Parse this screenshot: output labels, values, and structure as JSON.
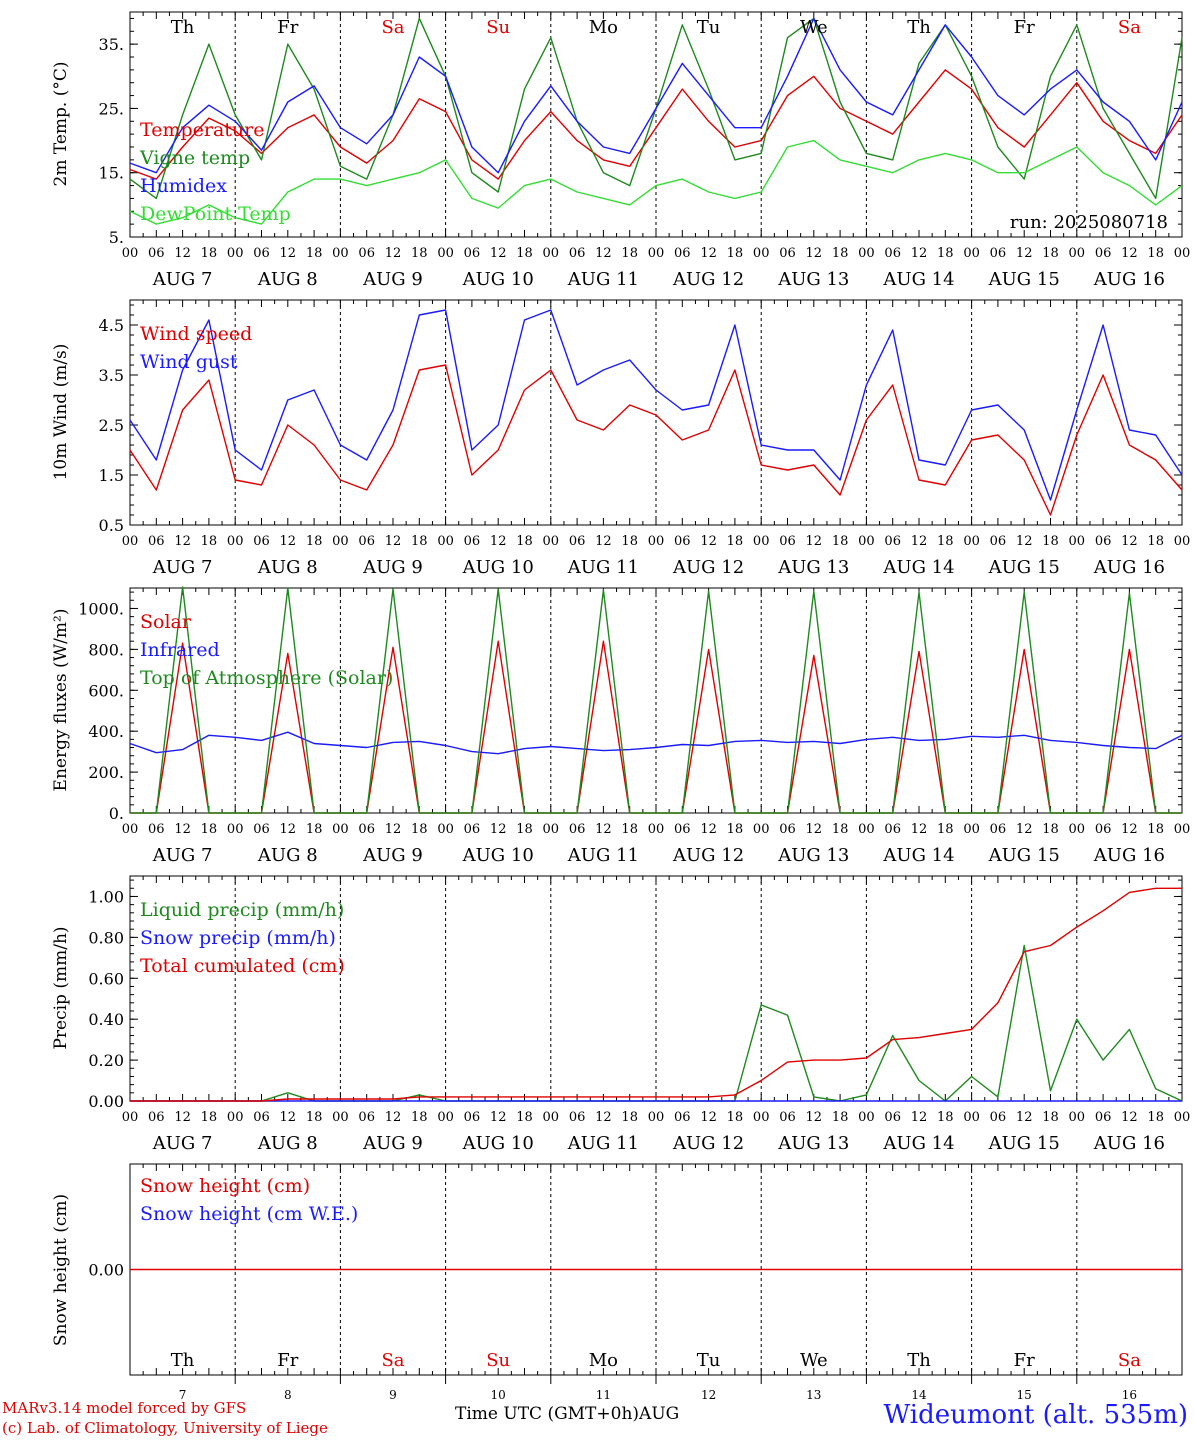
{
  "run_label": "run: 2025080718",
  "day_names": [
    "Th",
    "Fr",
    "Sa",
    "Su",
    "Mo",
    "Tu",
    "We",
    "Th",
    "Fr",
    "Sa"
  ],
  "weekend_flags": [
    false,
    false,
    true,
    true,
    false,
    false,
    false,
    false,
    false,
    true
  ],
  "date_labels": [
    "AUG  7",
    "AUG  8",
    "AUG  9",
    "AUG 10",
    "AUG 11",
    "AUG 12",
    "AUG 13",
    "AUG 14",
    "AUG 15",
    "AUG 16"
  ],
  "day_numbers": [
    "7",
    "8",
    "9",
    "10",
    "11",
    "12",
    "13",
    "14",
    "15",
    "16"
  ],
  "hour_labels": [
    "00",
    "06",
    "12",
    "18"
  ],
  "last_hour_label": "00",
  "colors": {
    "red": "#e00000",
    "green": "#1e8a1e",
    "blue": "#1a1aff",
    "lightgreen": "#33dd33"
  },
  "footer": {
    "model": "MARv3.14 model forced by GFS",
    "lab": "(c) Lab. of Climatology, University of Liege",
    "axis_title": "Time UTC (GMT+0h)AUG",
    "station": "Wideumont (alt. 535m)"
  },
  "chart_data": [
    {
      "type": "line",
      "ylabel": "2m Temp. (°C)",
      "ylim": [
        5,
        40
      ],
      "yticks": [
        "5.",
        "15.",
        "25.",
        "35."
      ],
      "ytick_values": [
        5,
        15,
        25,
        35
      ],
      "legend": [
        "Temperature",
        "Vigne temp",
        "Humidex",
        "DewPoint Temp"
      ],
      "x_hours": [
        0,
        6,
        12,
        18,
        24,
        30,
        36,
        42,
        48,
        54,
        60,
        66,
        72,
        78,
        84,
        90,
        96,
        102,
        108,
        114,
        120,
        126,
        132,
        138,
        144,
        150,
        156,
        162,
        168,
        174,
        180,
        186,
        192,
        198,
        204,
        210,
        216,
        222,
        228,
        234,
        240
      ],
      "series": [
        {
          "name": "Temperature",
          "color": "red",
          "values": [
            15.5,
            14,
            19,
            23.5,
            21.5,
            18,
            22,
            24,
            19,
            16.5,
            20,
            26.5,
            24.5,
            17,
            14,
            20,
            24.5,
            20,
            17,
            16,
            22,
            28,
            23,
            19,
            20,
            27,
            30,
            25,
            23,
            21,
            26,
            31,
            28,
            22,
            19,
            24,
            29,
            23,
            20,
            18,
            24
          ]
        },
        {
          "name": "Vigne temp",
          "color": "green",
          "values": [
            14,
            11,
            24,
            35,
            24,
            17,
            35,
            28,
            16,
            14,
            24,
            39,
            30,
            15,
            12,
            28,
            36,
            23,
            15,
            13,
            25,
            38,
            28,
            17,
            18,
            36,
            39,
            26,
            18,
            17,
            32,
            38,
            30,
            19,
            14,
            30,
            38,
            25,
            18,
            11,
            36
          ]
        },
        {
          "name": "Humidex",
          "color": "blue",
          "values": [
            16.5,
            15,
            22,
            25.5,
            23,
            18.5,
            26,
            28.5,
            22,
            19.5,
            24,
            33,
            30,
            19,
            15,
            23,
            28.5,
            23,
            19,
            18,
            25,
            32,
            27,
            22,
            22,
            30,
            39,
            31,
            26,
            24,
            31,
            38,
            33,
            27,
            24,
            28,
            31,
            26,
            23,
            17,
            26
          ]
        },
        {
          "name": "DewPoint Temp",
          "color": "lightgreen",
          "values": [
            9,
            7,
            8,
            10,
            8,
            7,
            12,
            14,
            14,
            13,
            14,
            15,
            17,
            11,
            9.5,
            13,
            14,
            12,
            11,
            10,
            13,
            14,
            12,
            11,
            12,
            19,
            20,
            17,
            16,
            15,
            17,
            18,
            17,
            15,
            15,
            17,
            19,
            15,
            13,
            10,
            13
          ]
        }
      ]
    },
    {
      "type": "line",
      "ylabel": "10m Wind (m/s)",
      "ylim": [
        0.5,
        5
      ],
      "yticks": [
        "0.5",
        "1.5",
        "2.5",
        "3.5",
        "4.5"
      ],
      "ytick_values": [
        0.5,
        1.5,
        2.5,
        3.5,
        4.5
      ],
      "legend": [
        "Wind speed",
        "Wind gust"
      ],
      "x_hours": [
        0,
        6,
        12,
        18,
        24,
        30,
        36,
        42,
        48,
        54,
        60,
        66,
        72,
        78,
        84,
        90,
        96,
        102,
        108,
        114,
        120,
        126,
        132,
        138,
        144,
        150,
        156,
        162,
        168,
        174,
        180,
        186,
        192,
        198,
        204,
        210,
        216,
        222,
        228,
        234,
        240
      ],
      "series": [
        {
          "name": "Wind speed",
          "color": "red",
          "values": [
            2,
            1.2,
            2.8,
            3.4,
            1.4,
            1.3,
            2.5,
            2.1,
            1.4,
            1.2,
            2.1,
            3.6,
            3.7,
            1.5,
            2,
            3.2,
            3.6,
            2.6,
            2.4,
            2.9,
            2.7,
            2.2,
            2.4,
            3.6,
            1.7,
            1.6,
            1.7,
            1.1,
            2.6,
            3.3,
            1.4,
            1.3,
            2.2,
            2.3,
            1.8,
            0.7,
            2.3,
            3.5,
            2.1,
            1.8,
            1.2
          ]
        },
        {
          "name": "Wind gust",
          "color": "blue",
          "values": [
            2.6,
            1.8,
            3.6,
            4.6,
            2,
            1.6,
            3,
            3.2,
            2.1,
            1.8,
            2.8,
            4.7,
            4.8,
            2,
            2.5,
            4.6,
            4.8,
            3.3,
            3.6,
            3.8,
            3.2,
            2.8,
            2.9,
            4.5,
            2.1,
            2,
            2,
            1.4,
            3.3,
            4.4,
            1.8,
            1.7,
            2.8,
            2.9,
            2.4,
            1,
            2.8,
            4.5,
            2.4,
            2.3,
            1.5
          ]
        }
      ]
    },
    {
      "type": "line",
      "ylabel": "Energy fluxes (W/m²)",
      "ylim": [
        0,
        1100
      ],
      "yticks": [
        "0.",
        "200.",
        "400.",
        "600.",
        "800.",
        "1000."
      ],
      "ytick_values": [
        0,
        200,
        400,
        600,
        800,
        1000
      ],
      "legend": [
        "Solar",
        "Infrared",
        "Top of Atmosphere (Solar)"
      ],
      "x_hours": [
        0,
        6,
        12,
        18,
        24,
        30,
        36,
        42,
        48,
        54,
        60,
        66,
        72,
        78,
        84,
        90,
        96,
        102,
        108,
        114,
        120,
        126,
        132,
        138,
        144,
        150,
        156,
        162,
        168,
        174,
        180,
        186,
        192,
        198,
        204,
        210,
        216,
        222,
        228,
        234,
        240
      ],
      "series": [
        {
          "name": "Solar",
          "color": "red",
          "values": [
            0,
            0,
            830,
            0,
            0,
            0,
            780,
            0,
            0,
            0,
            810,
            0,
            0,
            0,
            840,
            0,
            0,
            0,
            840,
            0,
            0,
            0,
            800,
            0,
            0,
            0,
            770,
            0,
            0,
            0,
            790,
            0,
            0,
            0,
            800,
            0,
            0,
            0,
            800,
            0,
            0
          ]
        },
        {
          "name": "Infrared",
          "color": "blue",
          "values": [
            340,
            295,
            310,
            380,
            370,
            355,
            395,
            340,
            330,
            320,
            345,
            350,
            330,
            300,
            290,
            315,
            325,
            315,
            305,
            310,
            320,
            335,
            330,
            350,
            355,
            345,
            350,
            340,
            360,
            370,
            355,
            360,
            375,
            370,
            380,
            355,
            345,
            330,
            320,
            315,
            380
          ]
        },
        {
          "name": "Top of Atmosphere (Solar)",
          "color": "green",
          "values": [
            0,
            0,
            1105,
            0,
            0,
            0,
            1100,
            0,
            0,
            0,
            1095,
            0,
            0,
            0,
            1095,
            0,
            0,
            0,
            1090,
            0,
            0,
            0,
            1085,
            0,
            0,
            0,
            1085,
            0,
            0,
            0,
            1080,
            0,
            0,
            0,
            1080,
            0,
            0,
            0,
            1075,
            0,
            0
          ]
        }
      ]
    },
    {
      "type": "line",
      "ylabel": "Precip (mm/h)",
      "ylim": [
        0,
        1.1
      ],
      "yticks": [
        "0.00",
        "0.20",
        "0.40",
        "0.60",
        "0.80",
        "1.00"
      ],
      "ytick_values": [
        0,
        0.2,
        0.4,
        0.6,
        0.8,
        1.0
      ],
      "legend": [
        "Liquid precip (mm/h)",
        "Snow precip (mm/h)",
        "Total cumulated (cm)"
      ],
      "x_hours": [
        0,
        6,
        12,
        18,
        24,
        30,
        36,
        42,
        48,
        54,
        60,
        66,
        72,
        78,
        84,
        90,
        96,
        102,
        108,
        114,
        120,
        126,
        132,
        138,
        144,
        150,
        156,
        162,
        168,
        174,
        180,
        186,
        192,
        198,
        204,
        210,
        216,
        222,
        228,
        234,
        240
      ],
      "series": [
        {
          "name": "Liquid precip (mm/h)",
          "color": "green",
          "values": [
            0,
            0,
            0,
            0,
            0,
            0,
            0.04,
            0,
            0,
            0,
            0,
            0.03,
            0,
            0,
            0,
            0,
            0,
            0,
            0,
            0,
            0,
            0,
            0,
            0,
            0.47,
            0.42,
            0.02,
            0,
            0.03,
            0.32,
            0.1,
            0,
            0.12,
            0.02,
            0.76,
            0.05,
            0.4,
            0.2,
            0.35,
            0.06,
            0
          ]
        },
        {
          "name": "Snow precip (mm/h)",
          "color": "blue",
          "values": [
            0,
            0,
            0,
            0,
            0,
            0,
            0,
            0,
            0,
            0,
            0,
            0,
            0,
            0,
            0,
            0,
            0,
            0,
            0,
            0,
            0,
            0,
            0,
            0,
            0,
            0,
            0,
            0,
            0,
            0,
            0,
            0,
            0,
            0,
            0,
            0,
            0,
            0,
            0,
            0,
            0
          ]
        },
        {
          "name": "Total cumulated (cm)",
          "color": "red",
          "values": [
            0,
            0,
            0,
            0,
            0,
            0,
            0.01,
            0.01,
            0.01,
            0.01,
            0.01,
            0.02,
            0.02,
            0.02,
            0.02,
            0.02,
            0.02,
            0.02,
            0.02,
            0.02,
            0.02,
            0.02,
            0.02,
            0.03,
            0.1,
            0.19,
            0.2,
            0.2,
            0.21,
            0.3,
            0.31,
            0.33,
            0.35,
            0.48,
            0.73,
            0.76,
            0.85,
            0.93,
            1.02,
            1.04,
            1.04
          ]
        }
      ]
    },
    {
      "type": "line",
      "ylabel": "Snow height (cm)",
      "ylim": [
        -1,
        1
      ],
      "yticks": [
        "0.00"
      ],
      "ytick_values": [
        0
      ],
      "legend": [
        "Snow height (cm)",
        "Snow height (cm W.E.)"
      ],
      "x_hours": [
        0,
        240
      ],
      "series": [
        {
          "name": "Snow height (cm)",
          "color": "red",
          "values": [
            0,
            0
          ]
        }
      ]
    }
  ]
}
